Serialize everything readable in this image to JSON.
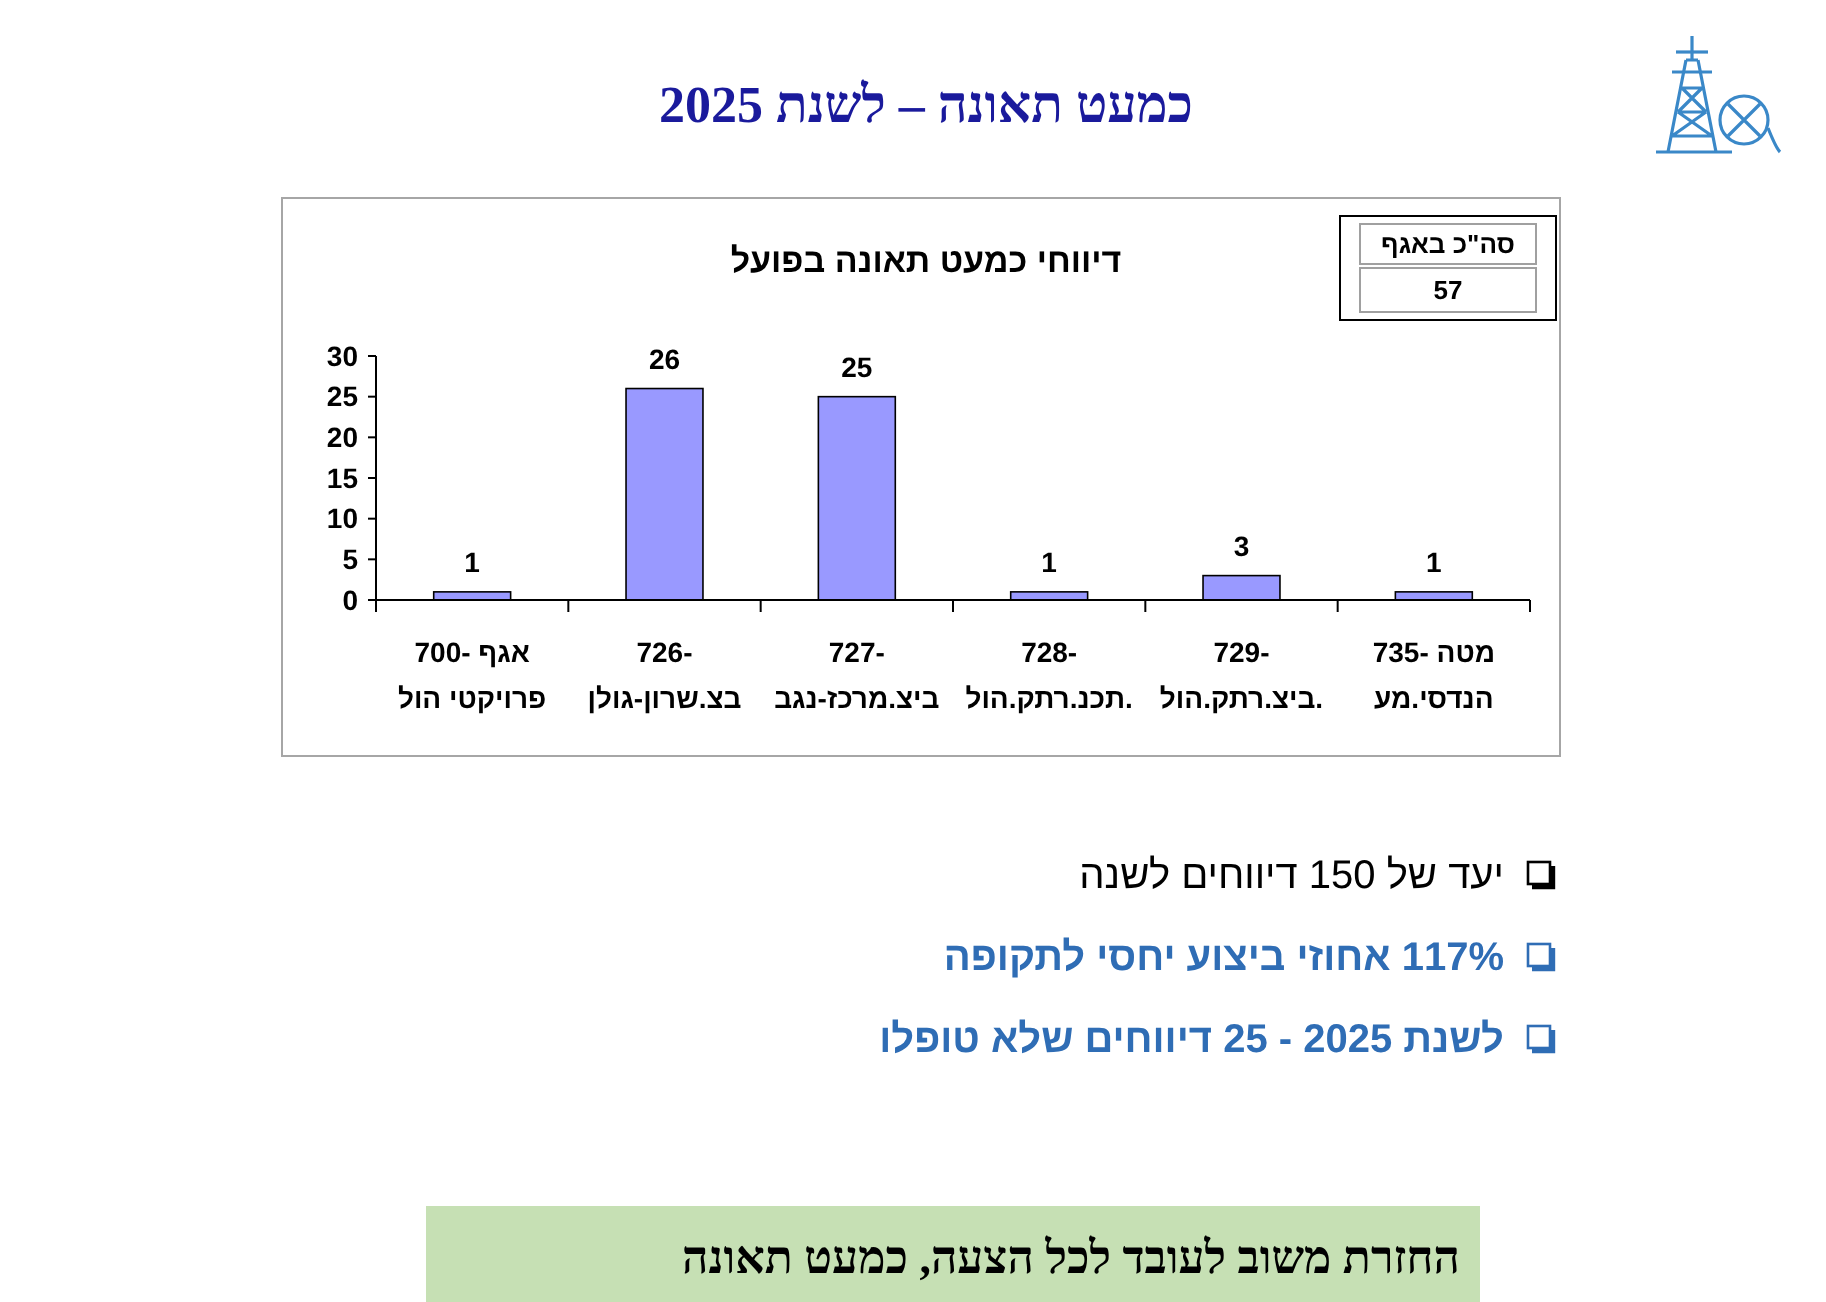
{
  "chart_data": {
    "type": "bar",
    "title": "כמעט תאונה – לשנת 2025",
    "subtitle": "דיווחי כמעט תאונה בפועל",
    "categories": [
      "אגף -700\nפרויקטי הול",
      "-726\nבצ.שרון-גולן",
      "-727\nביצ.מרכז-נגב",
      "-728\n.תכנ.רתק.הול",
      "-729\n.ביצ.רתק.הול",
      "מטה -735\nהנדסי.מע"
    ],
    "values": [
      1,
      26,
      25,
      1,
      3,
      1
    ],
    "color": "#9999ff",
    "ylim": [
      0,
      30
    ],
    "yticks": [
      0,
      5,
      10,
      15,
      20,
      25,
      30
    ],
    "data_labels": true,
    "annotations": [
      "סה\"כ באגף",
      "57",
      "יעד של 150 דיווחים לשנה",
      "117% אחוזי ביצוע יחסי לתקופה",
      "לשנת 2025 - 25 דיווחים שלא טופלו",
      "החזרת משוב לעובד לכל הצעה, כמעט תאונה"
    ]
  }
}
